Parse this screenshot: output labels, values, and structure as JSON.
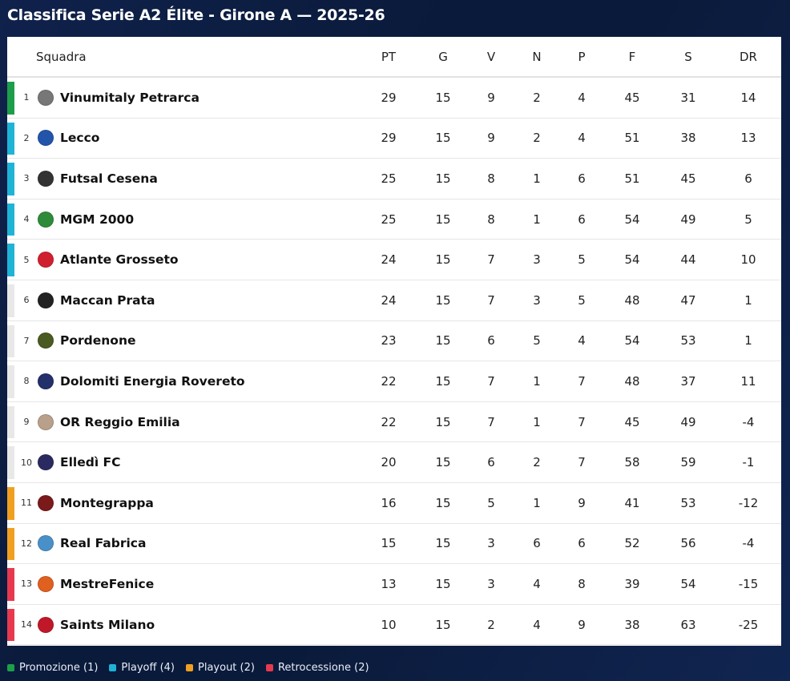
{
  "title": "Classifica Serie A2 Élite - Girone A — 2025-26",
  "columns": {
    "team": "Squadra",
    "pt": "PT",
    "g": "G",
    "v": "V",
    "n": "N",
    "p": "P",
    "f": "F",
    "s": "S",
    "dr": "DR"
  },
  "colors": {
    "promozione": "#1e9e4a",
    "playoff": "#1fb3d6",
    "playout": "#f0a020",
    "retrocessione": "#e6394f",
    "none": "#e8e8e8"
  },
  "rows": [
    {
      "pos": "1",
      "team": "Vinumitaly Petrarca",
      "pt": "29",
      "g": "15",
      "v": "9",
      "n": "2",
      "p": "4",
      "f": "45",
      "s": "31",
      "dr": "14",
      "zone": "promozione",
      "logo_color": "#777777",
      "logo_icon": "shield-icon"
    },
    {
      "pos": "2",
      "team": "Lecco",
      "pt": "29",
      "g": "15",
      "v": "9",
      "n": "2",
      "p": "4",
      "f": "51",
      "s": "38",
      "dr": "13",
      "zone": "playoff",
      "logo_color": "#2255aa",
      "logo_icon": "shield-icon"
    },
    {
      "pos": "3",
      "team": "Futsal Cesena",
      "pt": "25",
      "g": "15",
      "v": "8",
      "n": "1",
      "p": "6",
      "f": "51",
      "s": "45",
      "dr": "6",
      "zone": "playoff",
      "logo_color": "#333333",
      "logo_icon": "shield-icon"
    },
    {
      "pos": "4",
      "team": "MGM 2000",
      "pt": "25",
      "g": "15",
      "v": "8",
      "n": "1",
      "p": "6",
      "f": "54",
      "s": "49",
      "dr": "5",
      "zone": "playoff",
      "logo_color": "#2e8b3a",
      "logo_icon": "badge-icon"
    },
    {
      "pos": "5",
      "team": "Atlante Grosseto",
      "pt": "24",
      "g": "15",
      "v": "7",
      "n": "3",
      "p": "5",
      "f": "54",
      "s": "44",
      "dr": "10",
      "zone": "playoff",
      "logo_color": "#d02030",
      "logo_icon": "shield-icon"
    },
    {
      "pos": "6",
      "team": "Maccan Prata",
      "pt": "24",
      "g": "15",
      "v": "7",
      "n": "3",
      "p": "5",
      "f": "48",
      "s": "47",
      "dr": "1",
      "zone": "none",
      "logo_color": "#222222",
      "logo_icon": "shield-icon"
    },
    {
      "pos": "7",
      "team": "Pordenone",
      "pt": "23",
      "g": "15",
      "v": "6",
      "n": "5",
      "p": "4",
      "f": "54",
      "s": "53",
      "dr": "1",
      "zone": "none",
      "logo_color": "#4a5a20",
      "logo_icon": "shield-icon"
    },
    {
      "pos": "8",
      "team": "Dolomiti Energia Rovereto",
      "pt": "22",
      "g": "15",
      "v": "7",
      "n": "1",
      "p": "7",
      "f": "48",
      "s": "37",
      "dr": "11",
      "zone": "none",
      "logo_color": "#23306a",
      "logo_icon": "badge-icon"
    },
    {
      "pos": "9",
      "team": "OR Reggio Emilia",
      "pt": "22",
      "g": "15",
      "v": "7",
      "n": "1",
      "p": "7",
      "f": "45",
      "s": "49",
      "dr": "-4",
      "zone": "none",
      "logo_color": "#b8a08a",
      "logo_icon": "shield-icon"
    },
    {
      "pos": "10",
      "team": "Elledì FC",
      "pt": "20",
      "g": "15",
      "v": "6",
      "n": "2",
      "p": "7",
      "f": "58",
      "s": "59",
      "dr": "-1",
      "zone": "none",
      "logo_color": "#2a2a60",
      "logo_icon": "shield-icon"
    },
    {
      "pos": "11",
      "team": "Montegrappa",
      "pt": "16",
      "g": "15",
      "v": "5",
      "n": "1",
      "p": "9",
      "f": "41",
      "s": "53",
      "dr": "-12",
      "zone": "playout",
      "logo_color": "#7a1a1a",
      "logo_icon": "badge-icon"
    },
    {
      "pos": "12",
      "team": "Real Fabrica",
      "pt": "15",
      "g": "15",
      "v": "3",
      "n": "6",
      "p": "6",
      "f": "52",
      "s": "56",
      "dr": "-4",
      "zone": "playout",
      "logo_color": "#4a90c8",
      "logo_icon": "shield-icon"
    },
    {
      "pos": "13",
      "team": "MestreFenice",
      "pt": "13",
      "g": "15",
      "v": "3",
      "n": "4",
      "p": "8",
      "f": "39",
      "s": "54",
      "dr": "-15",
      "zone": "retrocessione",
      "logo_color": "#e06020",
      "logo_icon": "badge-icon"
    },
    {
      "pos": "14",
      "team": "Saints Milano",
      "pt": "10",
      "g": "15",
      "v": "2",
      "n": "4",
      "p": "9",
      "f": "38",
      "s": "63",
      "dr": "-25",
      "zone": "retrocessione",
      "logo_color": "#c01828",
      "logo_icon": "badge-icon"
    }
  ],
  "legend": [
    {
      "label": "Promozione (1)",
      "zone": "promozione"
    },
    {
      "label": "Playoff (4)",
      "zone": "playoff"
    },
    {
      "label": "Playout (2)",
      "zone": "playout"
    },
    {
      "label": "Retrocessione (2)",
      "zone": "retrocessione"
    }
  ]
}
